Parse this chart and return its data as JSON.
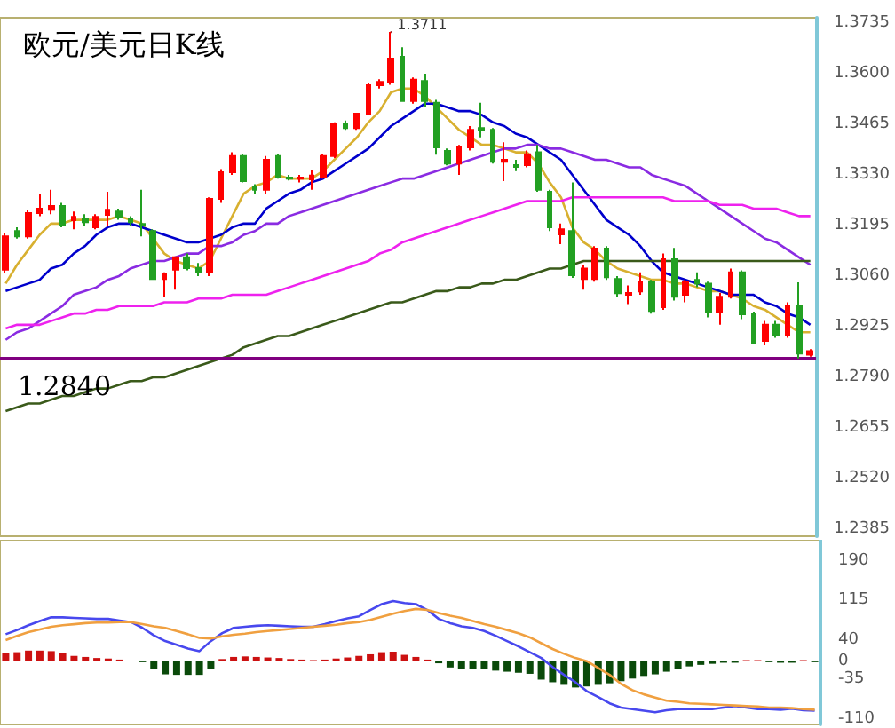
{
  "chart_data": [
    {
      "type": "candlestick",
      "title": "欧元/美元日K线",
      "categories": [
        null,
        null,
        null,
        null,
        null,
        null,
        null,
        null,
        null,
        null,
        null,
        null,
        null,
        null,
        null,
        null,
        null,
        null,
        null,
        null,
        null,
        null,
        null,
        null,
        null,
        null,
        null,
        null,
        null,
        null,
        null,
        null,
        null,
        null,
        null,
        null,
        null,
        null,
        null,
        null,
        null,
        null,
        null,
        null,
        null,
        null,
        null,
        null,
        null,
        null,
        null,
        null,
        null,
        null,
        null,
        null,
        null,
        null,
        null,
        null,
        null,
        null,
        null,
        null,
        null,
        null,
        null,
        null,
        null,
        null,
        null,
        null
      ],
      "ohlc": [
        [
          1.3077,
          1.3175,
          1.3068,
          1.3166
        ],
        [
          1.318,
          1.319,
          1.316,
          1.3166
        ],
        [
          1.3166,
          1.3235,
          1.316,
          1.3228
        ],
        [
          1.3228,
          1.328,
          1.322,
          1.324
        ],
        [
          1.3237,
          1.329,
          1.3225,
          1.3247
        ],
        [
          1.3247,
          1.3255,
          1.319,
          1.3195
        ],
        [
          1.3209,
          1.3232,
          1.3185,
          1.3218
        ],
        [
          1.3214,
          1.3225,
          1.3195,
          1.3204
        ],
        [
          1.319,
          1.3225,
          1.3185,
          1.3218
        ],
        [
          1.3223,
          1.3285,
          1.3195,
          1.3237
        ],
        [
          1.3232,
          1.324,
          1.321,
          1.3218
        ],
        [
          1.3214,
          1.322,
          1.3195,
          1.3204
        ],
        [
          1.3199,
          1.329,
          1.3166,
          1.3195
        ],
        [
          1.318,
          1.3185,
          1.305,
          1.3052
        ],
        [
          1.3052,
          1.307,
          1.3005,
          1.3066
        ],
        [
          1.3077,
          1.3112,
          1.3024,
          1.311
        ],
        [
          1.311,
          1.312,
          1.3075,
          1.3081
        ],
        [
          1.3081,
          1.3095,
          1.306,
          1.307
        ],
        [
          1.3072,
          1.327,
          1.306,
          1.3266
        ],
        [
          1.3266,
          1.3345,
          1.3255,
          1.3337
        ],
        [
          1.3337,
          1.339,
          1.333,
          1.338
        ],
        [
          1.338,
          1.3385,
          1.331,
          1.3313
        ],
        [
          1.3299,
          1.3305,
          1.328,
          1.329
        ],
        [
          1.329,
          1.338,
          1.328,
          1.337
        ],
        [
          1.338,
          1.3385,
          1.332,
          1.3323
        ],
        [
          1.3323,
          1.333,
          1.3315,
          1.332
        ],
        [
          1.332,
          1.333,
          1.331,
          1.3323
        ],
        [
          1.3318,
          1.3342,
          1.329,
          1.3328
        ],
        [
          1.3323,
          1.3385,
          1.332,
          1.338
        ],
        [
          1.338,
          1.347,
          1.3375,
          1.3465
        ],
        [
          1.3465,
          1.3475,
          1.345,
          1.3455
        ],
        [
          1.3455,
          1.3495,
          1.345,
          1.3493
        ],
        [
          1.3493,
          1.3575,
          1.349,
          1.3569
        ],
        [
          1.3569,
          1.3585,
          1.356,
          1.3578
        ],
        [
          1.3578,
          1.3711,
          1.357,
          1.364
        ],
        [
          1.3645,
          1.367,
          1.3525,
          1.3527
        ],
        [
          1.3527,
          1.359,
          1.352,
          1.3584
        ],
        [
          1.358,
          1.36,
          1.351,
          1.3527
        ],
        [
          1.3522,
          1.353,
          1.3384,
          1.3403
        ],
        [
          1.3394,
          1.34,
          1.3355,
          1.336
        ],
        [
          1.336,
          1.341,
          1.333,
          1.3403
        ],
        [
          1.3403,
          1.346,
          1.3395,
          1.345
        ],
        [
          1.3455,
          1.3522,
          1.343,
          1.345
        ],
        [
          1.345,
          1.3455,
          1.336,
          1.3365
        ],
        [
          1.3365,
          1.3417,
          1.3313,
          1.337
        ],
        [
          1.3356,
          1.337,
          1.334,
          1.3351
        ],
        [
          1.3356,
          1.3395,
          1.335,
          1.3385
        ],
        [
          1.339,
          1.341,
          1.3285,
          1.329
        ],
        [
          1.3285,
          1.329,
          1.318,
          1.319
        ],
        [
          1.3171,
          1.32,
          1.3145,
          1.3185
        ],
        [
          1.318,
          1.331,
          1.3055,
          1.3062
        ],
        [
          1.3052,
          1.309,
          1.3024,
          1.308
        ],
        [
          1.3052,
          1.314,
          1.3045,
          1.3133
        ],
        [
          1.3133,
          1.314,
          1.305,
          1.3057
        ],
        [
          1.3052,
          1.306,
          1.3005,
          1.3014
        ],
        [
          1.301,
          1.3035,
          1.2985,
          1.3015
        ],
        [
          1.3019,
          1.307,
          1.301,
          1.3043
        ],
        [
          1.3043,
          1.305,
          1.296,
          1.2967
        ],
        [
          1.2977,
          1.312,
          1.297,
          1.3105
        ],
        [
          1.3105,
          1.3135,
          1.2995,
          1.3005
        ],
        [
          1.301,
          1.305,
          1.299,
          1.3043
        ],
        [
          1.305,
          1.307,
          1.303,
          1.304
        ],
        [
          1.304,
          1.3045,
          1.295,
          1.2963
        ],
        [
          1.2963,
          1.3015,
          1.293,
          1.3005
        ],
        [
          1.3005,
          1.308,
          1.3,
          1.307
        ],
        [
          1.307,
          1.3075,
          1.2945,
          1.2958
        ],
        [
          1.2958,
          1.2965,
          1.288,
          1.2882
        ],
        [
          1.2887,
          1.294,
          1.2875,
          1.293
        ],
        [
          1.293,
          1.294,
          1.2895,
          1.2901
        ],
        [
          1.2901,
          1.299,
          1.2895,
          1.2982
        ],
        [
          1.2982,
          1.3043,
          1.284,
          1.2853
        ],
        [
          1.285,
          1.2865,
          1.2845,
          1.286
        ]
      ],
      "series": [
        {
          "type": "line",
          "color": "#d8b030",
          "values": [
            1.304,
            1.309,
            1.313,
            1.317,
            1.32,
            1.32,
            1.321,
            1.321,
            1.321,
            1.321,
            1.322,
            1.321,
            1.32,
            1.316,
            1.312,
            1.31,
            1.309,
            1.308,
            1.31,
            1.316,
            1.322,
            1.328,
            1.33,
            1.331,
            1.333,
            1.332,
            1.332,
            1.332,
            1.334,
            1.337,
            1.34,
            1.343,
            1.347,
            1.35,
            1.355,
            1.356,
            1.356,
            1.354,
            1.351,
            1.348,
            1.345,
            1.343,
            1.341,
            1.341,
            1.34,
            1.339,
            1.339,
            1.336,
            1.331,
            1.327,
            1.319,
            1.315,
            1.313,
            1.31,
            1.308,
            1.307,
            1.306,
            1.305,
            1.305,
            1.304,
            1.304,
            1.303,
            1.302,
            1.302,
            1.301,
            1.3,
            1.298,
            1.297,
            1.295,
            1.293,
            1.291,
            1.291
          ]
        },
        {
          "type": "line",
          "color": "#0000cc",
          "values": [
            1.302,
            1.303,
            1.304,
            1.305,
            1.308,
            1.309,
            1.312,
            1.314,
            1.317,
            1.319,
            1.32,
            1.32,
            1.319,
            1.318,
            1.317,
            1.316,
            1.315,
            1.315,
            1.316,
            1.317,
            1.319,
            1.32,
            1.32,
            1.324,
            1.326,
            1.328,
            1.329,
            1.331,
            1.332,
            1.334,
            1.336,
            1.338,
            1.34,
            1.343,
            1.346,
            1.348,
            1.35,
            1.352,
            1.352,
            1.351,
            1.35,
            1.35,
            1.349,
            1.347,
            1.346,
            1.344,
            1.343,
            1.341,
            1.339,
            1.337,
            1.333,
            1.329,
            1.325,
            1.321,
            1.319,
            1.317,
            1.314,
            1.31,
            1.307,
            1.306,
            1.305,
            1.304,
            1.303,
            1.302,
            1.301,
            1.301,
            1.301,
            1.299,
            1.298,
            1.296,
            1.295,
            1.293
          ]
        },
        {
          "type": "line",
          "color": "#8a2be2",
          "values": [
            1.289,
            1.291,
            1.292,
            1.294,
            1.296,
            1.298,
            1.301,
            1.302,
            1.303,
            1.305,
            1.306,
            1.308,
            1.309,
            1.31,
            1.31,
            1.311,
            1.312,
            1.312,
            1.314,
            1.314,
            1.315,
            1.317,
            1.318,
            1.32,
            1.32,
            1.322,
            1.323,
            1.324,
            1.325,
            1.326,
            1.327,
            1.328,
            1.329,
            1.33,
            1.331,
            1.332,
            1.332,
            1.333,
            1.334,
            1.335,
            1.336,
            1.337,
            1.338,
            1.339,
            1.34,
            1.34,
            1.341,
            1.341,
            1.34,
            1.34,
            1.339,
            1.338,
            1.337,
            1.337,
            1.336,
            1.335,
            1.335,
            1.333,
            1.332,
            1.331,
            1.33,
            1.328,
            1.326,
            1.324,
            1.322,
            1.32,
            1.318,
            1.316,
            1.315,
            1.313,
            1.311,
            1.309
          ]
        },
        {
          "type": "line",
          "color": "#ee22ee",
          "values": [
            1.292,
            1.293,
            1.293,
            1.293,
            1.294,
            1.295,
            1.296,
            1.296,
            1.297,
            1.297,
            1.298,
            1.298,
            1.298,
            1.298,
            1.299,
            1.299,
            1.299,
            1.3,
            1.3,
            1.3,
            1.301,
            1.301,
            1.301,
            1.301,
            1.302,
            1.303,
            1.304,
            1.305,
            1.306,
            1.307,
            1.308,
            1.309,
            1.31,
            1.312,
            1.313,
            1.315,
            1.316,
            1.317,
            1.318,
            1.319,
            1.32,
            1.321,
            1.322,
            1.323,
            1.324,
            1.325,
            1.326,
            1.326,
            1.326,
            1.326,
            1.327,
            1.327,
            1.327,
            1.327,
            1.327,
            1.327,
            1.327,
            1.327,
            1.327,
            1.326,
            1.326,
            1.326,
            1.326,
            1.325,
            1.325,
            1.325,
            1.324,
            1.324,
            1.324,
            1.323,
            1.322,
            1.322
          ]
        },
        {
          "type": "line",
          "color": "#3a5a1a",
          "values": [
            1.27,
            1.271,
            1.272,
            1.272,
            1.273,
            1.274,
            1.274,
            1.275,
            1.276,
            1.276,
            1.277,
            1.278,
            1.278,
            1.279,
            1.279,
            1.28,
            1.281,
            1.282,
            1.283,
            1.284,
            1.285,
            1.287,
            1.288,
            1.289,
            1.29,
            1.29,
            1.291,
            1.292,
            1.293,
            1.294,
            1.295,
            1.296,
            1.297,
            1.298,
            1.299,
            1.299,
            1.3,
            1.301,
            1.302,
            1.302,
            1.303,
            1.303,
            1.304,
            1.304,
            1.305,
            1.305,
            1.306,
            1.307,
            1.308,
            1.308,
            1.309,
            1.31,
            1.31,
            1.31,
            1.31,
            1.31,
            1.31,
            1.31,
            1.31,
            1.31,
            1.31,
            1.31,
            1.31,
            1.31,
            1.31,
            1.31,
            1.31,
            1.31,
            1.31,
            1.31,
            1.31,
            1.31
          ]
        }
      ],
      "ylim": [
        1.2366,
        1.3749
      ],
      "yticks": [
        {
          "value": 1.2385,
          "label": "1.2385"
        },
        {
          "value": 1.252,
          "label": "1.2520"
        },
        {
          "value": 1.2655,
          "label": "1.2655"
        },
        {
          "value": 1.279,
          "label": "1.2790"
        },
        {
          "value": 1.2925,
          "label": "1.2925"
        },
        {
          "value": 1.306,
          "label": "1.3060"
        },
        {
          "value": 1.3195,
          "label": "1.3195"
        },
        {
          "value": 1.333,
          "label": "1.3330"
        },
        {
          "value": 1.3465,
          "label": "1.3465"
        },
        {
          "value": 1.36,
          "label": "1.3600"
        },
        {
          "value": 1.3735,
          "label": "1.3735"
        }
      ],
      "ref_lines": [
        {
          "axis": "y",
          "value": 1.284,
          "label": "1.2840",
          "color": "#800080"
        }
      ],
      "annotations": [
        "1.3711"
      ],
      "tick_labels": "y"
    },
    {
      "type": "bar",
      "categories": [
        null,
        null,
        null,
        null,
        null,
        null,
        null,
        null,
        null,
        null,
        null,
        null,
        null,
        null,
        null,
        null,
        null,
        null,
        null,
        null,
        null,
        null,
        null,
        null,
        null,
        null,
        null,
        null,
        null,
        null,
        null,
        null,
        null,
        null,
        null,
        null,
        null,
        null,
        null,
        null,
        null,
        null,
        null,
        null,
        null,
        null,
        null,
        null,
        null,
        null,
        null,
        null,
        null,
        null,
        null,
        null,
        null,
        null,
        null,
        null,
        null,
        null,
        null,
        null,
        null,
        null,
        null,
        null,
        null,
        null,
        null,
        null
      ],
      "series": [
        {
          "type": "bar",
          "colors": [
            "#cc1111",
            "#cc1111",
            "#cc1111",
            "#cc1111",
            "#cc1111",
            "#cc1111",
            "#cc1111",
            "#cc1111",
            "#cc1111",
            "#cc1111",
            "#cc1111",
            "#cc1111",
            "#0a4a0a",
            "#0a4a0a",
            "#0a4a0a",
            "#0a4a0a",
            "#0a4a0a",
            "#0a4a0a",
            "#0a4a0a",
            "#cc1111",
            "#cc1111",
            "#cc1111",
            "#cc1111",
            "#cc1111",
            "#cc1111",
            "#cc1111",
            "#cc1111",
            "#cc1111",
            "#cc1111",
            "#cc1111",
            "#cc1111",
            "#cc1111",
            "#cc1111",
            "#cc1111",
            "#cc1111",
            "#cc1111",
            "#cc1111",
            "#cc1111",
            "#0a4a0a",
            "#0a4a0a",
            "#0a4a0a",
            "#0a4a0a",
            "#0a4a0a",
            "#0a4a0a",
            "#0a4a0a",
            "#0a4a0a",
            "#0a4a0a",
            "#0a4a0a",
            "#0a4a0a",
            "#0a4a0a",
            "#0a4a0a",
            "#0a4a0a",
            "#0a4a0a",
            "#0a4a0a",
            "#0a4a0a",
            "#0a4a0a",
            "#0a4a0a",
            "#0a4a0a",
            "#0a4a0a",
            "#0a4a0a",
            "#0a4a0a",
            "#0a4a0a",
            "#0a4a0a",
            "#0a4a0a",
            "#0a4a0a",
            "#cc1111",
            "#cc1111",
            "#0a4a0a",
            "#0a4a0a",
            "#0a4a0a",
            "#cc1111",
            "#0a4a0a"
          ],
          "values": [
            15,
            17,
            20,
            20,
            19,
            16,
            10,
            8,
            6,
            5,
            3,
            1,
            -2,
            -15,
            -25,
            -26,
            -26,
            -26,
            -15,
            4,
            8,
            9,
            8,
            7,
            6,
            4,
            3,
            2,
            3,
            5,
            7,
            10,
            13,
            17,
            18,
            12,
            8,
            3,
            -4,
            -12,
            -14,
            -15,
            -15,
            -18,
            -20,
            -22,
            -24,
            -35,
            -40,
            -45,
            -50,
            -48,
            -45,
            -42,
            -38,
            -33,
            -28,
            -25,
            -20,
            -14,
            -10,
            -7,
            -5,
            -3,
            -3,
            2,
            2,
            -2,
            -3,
            -3,
            2,
            -2
          ]
        },
        {
          "type": "line",
          "color": "#4848ee",
          "values": [
            51,
            59,
            68,
            76,
            83,
            83,
            82,
            81,
            80,
            80,
            77,
            74,
            63,
            49,
            38,
            31,
            24,
            19,
            38,
            53,
            63,
            65,
            67,
            68,
            67,
            66,
            65,
            65,
            70,
            76,
            81,
            85,
            97,
            108,
            114,
            110,
            108,
            97,
            80,
            72,
            66,
            63,
            57,
            48,
            38,
            28,
            17,
            6,
            -11,
            -26,
            -40,
            -57,
            -68,
            -80,
            -88,
            -91,
            -94,
            -97,
            -93,
            -91,
            -91,
            -91,
            -91,
            -88,
            -85,
            -88,
            -91,
            -91,
            -92,
            -90,
            -93,
            -94
          ]
        },
        {
          "type": "line",
          "color": "#f0a040",
          "values": [
            40,
            48,
            55,
            60,
            65,
            68,
            70,
            72,
            73,
            73,
            74,
            74,
            70,
            66,
            63,
            57,
            51,
            44,
            43,
            47,
            50,
            52,
            55,
            57,
            59,
            61,
            63,
            65,
            67,
            69,
            72,
            74,
            78,
            84,
            90,
            95,
            99,
            97,
            91,
            86,
            82,
            76,
            70,
            65,
            59,
            53,
            45,
            34,
            23,
            14,
            6,
            0,
            -13,
            -26,
            -43,
            -55,
            -63,
            -69,
            -75,
            -77,
            -80,
            -81,
            -82,
            -83,
            -84,
            -85,
            -86,
            -88,
            -88,
            -89,
            -91,
            -92
          ]
        }
      ],
      "ylim": [
        -120,
        230
      ],
      "yticks": [
        -110,
        -35,
        0,
        40,
        115,
        190
      ],
      "tick_labels": "y"
    }
  ]
}
